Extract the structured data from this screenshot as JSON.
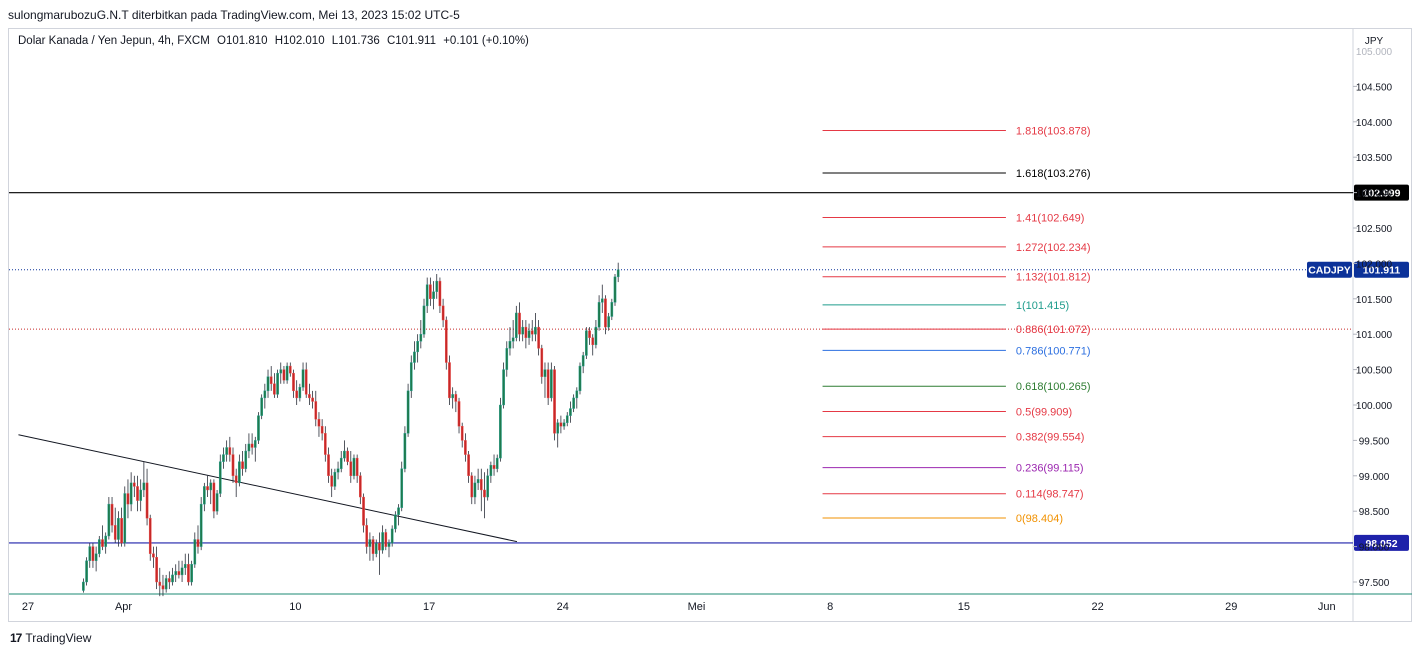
{
  "header": {
    "publisher_line": "sulongmarubozuG.N.T diterbitkan pada TradingView.com, Mei 13, 2023 15:02 UTC-5"
  },
  "legend": {
    "instrument": "Dolar Kanada / Yen Jepun, 4h, FXCM",
    "open": "O101.810",
    "high": "H102.010",
    "low": "L101.736",
    "close": "C101.911",
    "change": "+0.101 (+0.10%)"
  },
  "footer": {
    "brand": "TradingView"
  },
  "colors": {
    "up": "#26a69a",
    "down": "#ef5350",
    "up_body": "#1f7a4d",
    "down_body": "#c62828",
    "blue_line": "#1e22aa",
    "price_badge": "#0c3299"
  },
  "chart_data": {
    "type": "candlestick",
    "symbol": "CADJPY",
    "currency_label": "JPY",
    "price_axis": {
      "ylim": [
        97.35,
        105.0
      ],
      "ticks": [
        97.5,
        98.0,
        98.5,
        99.0,
        99.5,
        100.0,
        100.5,
        101.0,
        101.5,
        102.0,
        102.5,
        103.0,
        103.5,
        104.0,
        104.5
      ],
      "tick_labels": [
        "97.500",
        "98.000",
        "98.500",
        "99.000",
        "99.500",
        "100.000",
        "100.500",
        "101.000",
        "101.500",
        "102.000",
        "102.500",
        "103.000",
        "103.500",
        "104.000",
        "104.500"
      ]
    },
    "time_axis": {
      "labels": [
        "27",
        "Apr",
        "10",
        "17",
        "24",
        "Mei",
        "8",
        "15",
        "22",
        "29",
        "Jun"
      ],
      "label_day_index": [
        0,
        5,
        14,
        21,
        28,
        35,
        42,
        49,
        56,
        63,
        68
      ]
    },
    "bars_per_day": 6,
    "candles_ohlc": [
      [
        97.38,
        97.55,
        97.35,
        97.5
      ],
      [
        97.5,
        97.85,
        97.45,
        97.8
      ],
      [
        97.8,
        98.05,
        97.7,
        98.0
      ],
      [
        98.0,
        98.05,
        97.7,
        97.8
      ],
      [
        97.8,
        98.0,
        97.65,
        97.9
      ],
      [
        97.9,
        98.15,
        97.85,
        98.1
      ],
      [
        98.1,
        98.3,
        97.95,
        98.0
      ],
      [
        98.0,
        98.2,
        97.9,
        98.15
      ],
      [
        98.15,
        98.7,
        98.1,
        98.6
      ],
      [
        98.6,
        98.7,
        98.2,
        98.3
      ],
      [
        98.3,
        98.55,
        98.05,
        98.1
      ],
      [
        98.1,
        98.5,
        98.0,
        98.4
      ],
      [
        98.4,
        98.55,
        98.0,
        98.05
      ],
      [
        98.05,
        98.85,
        98.0,
        98.75
      ],
      [
        98.75,
        98.95,
        98.4,
        98.6
      ],
      [
        98.6,
        99.05,
        98.5,
        98.9
      ],
      [
        98.9,
        99.0,
        98.7,
        98.85
      ],
      [
        98.85,
        99.0,
        98.5,
        98.65
      ],
      [
        98.65,
        98.95,
        98.5,
        98.8
      ],
      [
        98.8,
        99.2,
        98.7,
        98.9
      ],
      [
        98.9,
        99.1,
        98.3,
        98.4
      ],
      [
        98.4,
        98.45,
        97.8,
        97.9
      ],
      [
        97.9,
        98.0,
        97.7,
        97.85
      ],
      [
        97.85,
        98.0,
        97.4,
        97.5
      ],
      [
        97.5,
        97.7,
        97.3,
        97.45
      ],
      [
        97.45,
        97.6,
        97.3,
        97.4
      ],
      [
        97.4,
        97.6,
        97.35,
        97.55
      ],
      [
        97.55,
        97.65,
        97.4,
        97.5
      ],
      [
        97.5,
        97.7,
        97.45,
        97.6
      ],
      [
        97.6,
        97.75,
        97.5,
        97.65
      ],
      [
        97.65,
        97.8,
        97.55,
        97.6
      ],
      [
        97.6,
        97.8,
        97.5,
        97.7
      ],
      [
        97.7,
        97.9,
        97.6,
        97.75
      ],
      [
        97.75,
        97.9,
        97.45,
        97.5
      ],
      [
        97.5,
        97.8,
        97.45,
        97.75
      ],
      [
        97.75,
        98.2,
        97.7,
        98.1
      ],
      [
        98.1,
        98.3,
        97.9,
        98.0
      ],
      [
        98.0,
        98.7,
        97.95,
        98.6
      ],
      [
        98.6,
        98.9,
        98.5,
        98.85
      ],
      [
        98.85,
        99.0,
        98.7,
        98.8
      ],
      [
        98.8,
        98.95,
        98.6,
        98.9
      ],
      [
        98.9,
        98.95,
        98.4,
        98.5
      ],
      [
        98.5,
        98.8,
        98.45,
        98.75
      ],
      [
        98.75,
        99.3,
        98.7,
        99.2
      ],
      [
        99.2,
        99.4,
        99.1,
        99.3
      ],
      [
        99.3,
        99.5,
        99.2,
        99.4
      ],
      [
        99.4,
        99.55,
        99.2,
        99.3
      ],
      [
        99.3,
        99.4,
        98.9,
        99.0
      ],
      [
        99.0,
        99.1,
        98.7,
        98.9
      ],
      [
        98.9,
        99.3,
        98.85,
        99.2
      ],
      [
        99.2,
        99.35,
        99.0,
        99.1
      ],
      [
        99.1,
        99.45,
        99.05,
        99.35
      ],
      [
        99.35,
        99.6,
        99.25,
        99.45
      ],
      [
        99.45,
        99.6,
        99.3,
        99.4
      ],
      [
        99.4,
        99.55,
        99.2,
        99.5
      ],
      [
        99.5,
        99.9,
        99.45,
        99.85
      ],
      [
        99.85,
        100.15,
        99.8,
        100.1
      ],
      [
        100.1,
        100.3,
        99.95,
        100.2
      ],
      [
        100.2,
        100.5,
        100.1,
        100.4
      ],
      [
        100.4,
        100.55,
        100.2,
        100.3
      ],
      [
        100.3,
        100.45,
        100.1,
        100.15
      ],
      [
        100.15,
        100.5,
        100.1,
        100.45
      ],
      [
        100.45,
        100.6,
        100.3,
        100.5
      ],
      [
        100.5,
        100.55,
        100.3,
        100.35
      ],
      [
        100.35,
        100.6,
        100.3,
        100.55
      ],
      [
        100.55,
        100.6,
        100.4,
        100.45
      ],
      [
        100.45,
        100.5,
        100.1,
        100.2
      ],
      [
        100.2,
        100.35,
        100.0,
        100.1
      ],
      [
        100.1,
        100.3,
        100.05,
        100.25
      ],
      [
        100.25,
        100.6,
        100.2,
        100.5
      ],
      [
        100.5,
        100.6,
        100.1,
        100.15
      ],
      [
        100.15,
        100.3,
        100.0,
        100.1
      ],
      [
        100.1,
        100.2,
        99.95,
        100.05
      ],
      [
        100.05,
        100.2,
        99.7,
        99.8
      ],
      [
        99.8,
        99.9,
        99.55,
        99.7
      ],
      [
        99.7,
        99.8,
        99.5,
        99.6
      ],
      [
        99.6,
        99.7,
        99.2,
        99.3
      ],
      [
        99.3,
        99.4,
        98.9,
        99.0
      ],
      [
        99.0,
        99.1,
        98.7,
        98.85
      ],
      [
        98.85,
        99.1,
        98.8,
        99.05
      ],
      [
        99.05,
        99.2,
        98.95,
        99.1
      ],
      [
        99.1,
        99.35,
        99.05,
        99.25
      ],
      [
        99.25,
        99.5,
        99.2,
        99.35
      ],
      [
        99.35,
        99.4,
        99.15,
        99.2
      ],
      [
        99.2,
        99.35,
        98.9,
        99.0
      ],
      [
        99.0,
        99.3,
        98.95,
        99.25
      ],
      [
        99.25,
        99.3,
        98.9,
        99.0
      ],
      [
        99.0,
        99.05,
        98.6,
        98.7
      ],
      [
        98.7,
        98.75,
        98.2,
        98.3
      ],
      [
        98.3,
        98.4,
        97.9,
        98.0
      ],
      [
        98.0,
        98.2,
        97.8,
        98.1
      ],
      [
        98.1,
        98.15,
        97.8,
        97.9
      ],
      [
        97.9,
        98.1,
        97.85,
        98.05
      ],
      [
        98.05,
        98.2,
        97.6,
        97.95
      ],
      [
        97.95,
        98.3,
        97.9,
        98.2
      ],
      [
        98.2,
        98.25,
        97.95,
        98.0
      ],
      [
        98.0,
        98.1,
        97.85,
        98.05
      ],
      [
        98.05,
        98.3,
        98.0,
        98.25
      ],
      [
        98.25,
        98.5,
        98.2,
        98.45
      ],
      [
        98.45,
        98.6,
        98.3,
        98.55
      ],
      [
        98.55,
        99.2,
        98.5,
        99.1
      ],
      [
        99.1,
        99.7,
        99.05,
        99.6
      ],
      [
        99.6,
        100.3,
        99.55,
        100.2
      ],
      [
        100.2,
        100.7,
        100.1,
        100.6
      ],
      [
        100.6,
        100.9,
        100.5,
        100.75
      ],
      [
        100.75,
        101.0,
        100.6,
        100.9
      ],
      [
        100.9,
        101.2,
        100.8,
        101.0
      ],
      [
        101.0,
        101.5,
        100.95,
        101.4
      ],
      [
        101.4,
        101.8,
        101.3,
        101.7
      ],
      [
        101.7,
        101.8,
        101.4,
        101.5
      ],
      [
        101.5,
        101.75,
        101.35,
        101.6
      ],
      [
        101.6,
        101.85,
        101.5,
        101.75
      ],
      [
        101.75,
        101.8,
        101.3,
        101.4
      ],
      [
        101.4,
        101.5,
        101.1,
        101.2
      ],
      [
        101.2,
        101.25,
        100.5,
        100.6
      ],
      [
        100.6,
        100.7,
        100.0,
        100.1
      ],
      [
        100.1,
        100.25,
        99.95,
        100.15
      ],
      [
        100.15,
        100.2,
        99.9,
        100.05
      ],
      [
        100.05,
        100.1,
        99.6,
        99.7
      ],
      [
        99.7,
        99.75,
        99.4,
        99.5
      ],
      [
        99.5,
        99.6,
        99.2,
        99.3
      ],
      [
        99.3,
        99.35,
        98.9,
        99.0
      ],
      [
        99.0,
        99.05,
        98.6,
        98.7
      ],
      [
        98.7,
        99.0,
        98.6,
        98.9
      ],
      [
        98.9,
        99.1,
        98.8,
        98.95
      ],
      [
        98.95,
        99.1,
        98.5,
        98.8
      ],
      [
        98.8,
        99.05,
        98.4,
        98.7
      ],
      [
        98.7,
        99.1,
        98.65,
        99.0
      ],
      [
        99.0,
        99.2,
        98.9,
        99.15
      ],
      [
        99.15,
        99.3,
        99.0,
        99.1
      ],
      [
        99.1,
        99.3,
        99.05,
        99.25
      ],
      [
        99.25,
        100.1,
        99.2,
        100.0
      ],
      [
        100.0,
        100.6,
        99.95,
        100.5
      ],
      [
        100.5,
        100.9,
        100.4,
        100.8
      ],
      [
        100.8,
        101.1,
        100.7,
        100.9
      ],
      [
        100.9,
        101.2,
        100.8,
        100.95
      ],
      [
        100.95,
        101.4,
        100.9,
        101.3
      ],
      [
        101.3,
        101.45,
        100.9,
        101.0
      ],
      [
        101.0,
        101.2,
        100.9,
        101.1
      ],
      [
        101.1,
        101.2,
        100.8,
        100.95
      ],
      [
        100.95,
        101.15,
        100.85,
        101.05
      ],
      [
        101.05,
        101.2,
        100.9,
        101.0
      ],
      [
        101.0,
        101.3,
        100.9,
        101.1
      ],
      [
        101.1,
        101.2,
        100.7,
        100.8
      ],
      [
        100.8,
        100.85,
        100.3,
        100.4
      ],
      [
        100.4,
        100.6,
        100.1,
        100.5
      ],
      [
        100.5,
        100.6,
        100.0,
        100.1
      ],
      [
        100.1,
        100.6,
        100.05,
        100.5
      ],
      [
        100.5,
        100.55,
        99.5,
        99.6
      ],
      [
        99.6,
        99.8,
        99.4,
        99.75
      ],
      [
        99.75,
        99.85,
        99.6,
        99.7
      ],
      [
        99.7,
        99.8,
        99.65,
        99.75
      ],
      [
        99.75,
        99.9,
        99.7,
        99.85
      ],
      [
        99.85,
        100.05,
        99.75,
        99.95
      ],
      [
        99.95,
        100.15,
        99.9,
        100.1
      ],
      [
        100.1,
        100.25,
        99.95,
        100.2
      ],
      [
        100.2,
        100.6,
        100.15,
        100.55
      ],
      [
        100.55,
        100.75,
        100.45,
        100.7
      ],
      [
        100.7,
        101.1,
        100.65,
        101.05
      ],
      [
        101.05,
        101.1,
        100.85,
        100.95
      ],
      [
        100.95,
        101.0,
        100.7,
        100.85
      ],
      [
        100.85,
        101.2,
        100.8,
        101.1
      ],
      [
        101.1,
        101.55,
        101.05,
        101.45
      ],
      [
        101.45,
        101.7,
        101.3,
        101.5
      ],
      [
        101.5,
        101.55,
        101.0,
        101.1
      ],
      [
        101.1,
        101.3,
        101.05,
        101.25
      ],
      [
        101.25,
        101.5,
        101.2,
        101.45
      ],
      [
        101.45,
        101.85,
        101.4,
        101.81
      ],
      [
        101.81,
        102.01,
        101.736,
        101.911
      ]
    ],
    "horizontal_levels": [
      {
        "price": 102.999,
        "label": "102.999",
        "color": "#000000"
      },
      {
        "price": 98.052,
        "label": "98.052",
        "color": "#1e22aa"
      },
      {
        "price": 101.911,
        "label": "101.911",
        "color": "#0c3299",
        "tag": "CADJPY",
        "style": "dotted"
      },
      {
        "price": 101.072,
        "color": "#c62828",
        "style": "dotted"
      }
    ],
    "trendline": {
      "start": {
        "day": -0.5,
        "price": 99.58
      },
      "end": {
        "day": 25.6,
        "price": 98.07
      }
    },
    "fibonacci": {
      "start_day": 41.6,
      "end_day": 51.2,
      "levels": [
        {
          "ratio": "1.818",
          "price": 103.878,
          "label": "1.818(103.878)",
          "color": "#e53945"
        },
        {
          "ratio": "1.618",
          "price": 103.276,
          "label": "1.618(103.276)",
          "color": "#000000"
        },
        {
          "ratio": "1.41",
          "price": 102.649,
          "label": "1.41(102.649)",
          "color": "#e53945"
        },
        {
          "ratio": "1.272",
          "price": 102.234,
          "label": "1.272(102.234)",
          "color": "#e53945"
        },
        {
          "ratio": "1.132",
          "price": 101.812,
          "label": "1.132(101.812)",
          "color": "#e53945"
        },
        {
          "ratio": "1",
          "price": 101.415,
          "label": "1(101.415)",
          "color": "#1f9c8c"
        },
        {
          "ratio": "0.886",
          "price": 101.072,
          "label": "0.886(101.072)",
          "color": "#e53945"
        },
        {
          "ratio": "0.786",
          "price": 100.771,
          "label": "0.786(100.771)",
          "color": "#2c6fe0"
        },
        {
          "ratio": "0.618",
          "price": 100.265,
          "label": "0.618(100.265)",
          "color": "#2e7d32"
        },
        {
          "ratio": "0.5",
          "price": 99.909,
          "label": "0.5(99.909)",
          "color": "#e53945"
        },
        {
          "ratio": "0.382",
          "price": 99.554,
          "label": "0.382(99.554)",
          "color": "#e53945"
        },
        {
          "ratio": "0.236",
          "price": 99.115,
          "label": "0.236(99.115)",
          "color": "#9c27b0"
        },
        {
          "ratio": "0.114",
          "price": 98.747,
          "label": "0.114(98.747)",
          "color": "#e53945"
        },
        {
          "ratio": "0",
          "price": 98.404,
          "label": "0(98.404)",
          "color": "#f19100"
        }
      ]
    }
  }
}
